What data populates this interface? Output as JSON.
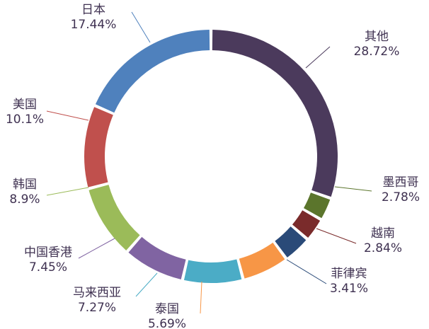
{
  "chart_data": {
    "type": "pie",
    "donut": true,
    "legend": "none",
    "slices": [
      {
        "label": "其他",
        "value": 28.72,
        "value_text": "28.72%",
        "color": "#4b3a5c"
      },
      {
        "label": "墨西哥",
        "value": 2.78,
        "value_text": "2.78%",
        "color": "#5b752c"
      },
      {
        "label": "越南",
        "value": 2.84,
        "value_text": "2.84%",
        "color": "#7a2b2b"
      },
      {
        "label": "菲律宾",
        "value": 3.41,
        "value_text": "3.41%",
        "color": "#2a4a78"
      },
      {
        "label": "泰国",
        "value": 5.69,
        "value_text": "5.69%",
        "color": "#f79646"
      },
      {
        "label": "马来西亚",
        "value": 7.27,
        "value_text": "7.27%",
        "color": "#4bacc6"
      },
      {
        "label": "中国香港",
        "value": 7.45,
        "value_text": "7.45%",
        "color": "#8064a2"
      },
      {
        "label": "韩国",
        "value": 8.9,
        "value_text": "8.9%",
        "color": "#9bbb59"
      },
      {
        "label": "美国",
        "value": 10.1,
        "value_text": "10.1%",
        "color": "#c0504d"
      },
      {
        "label": "日本",
        "value": 17.44,
        "value_text": "17.44%",
        "color": "#4f81bd"
      }
    ],
    "label_color": "#3f3151"
  }
}
